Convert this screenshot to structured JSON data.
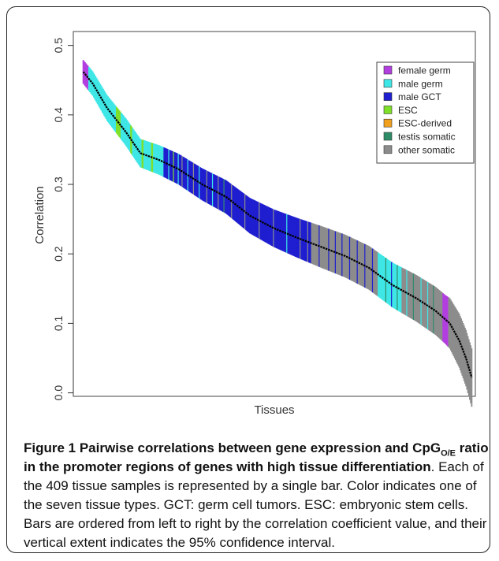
{
  "chart_data": {
    "type": "bar",
    "n_samples": 409,
    "xlabel": "Tissues",
    "ylabel": "Correlation",
    "ylim": [
      -0.005,
      0.52
    ],
    "yticks": [
      0.0,
      0.1,
      0.2,
      0.3,
      0.4,
      0.5
    ],
    "ytick_labels": [
      "0.0",
      "0.1",
      "0.2",
      "0.3",
      "0.4",
      "0.5"
    ],
    "legend_position": "top-right",
    "legend": [
      {
        "label": "female germ",
        "color": "#b23ee0"
      },
      {
        "label": "male germ",
        "color": "#3fe6e6"
      },
      {
        "label": "male GCT",
        "color": "#1f1fd0"
      },
      {
        "label": "ESC",
        "color": "#7fe02a"
      },
      {
        "label": "ESC-derived",
        "color": "#f0a01e"
      },
      {
        "label": "testis somatic",
        "color": "#2f8c68"
      },
      {
        "label": "other somatic",
        "color": "#8c8c8c"
      }
    ],
    "correlation_curve": {
      "index": [
        0,
        10,
        25,
        45,
        60,
        80,
        100,
        125,
        150,
        175,
        200,
        225,
        250,
        275,
        300,
        325,
        350,
        370,
        385,
        395,
        402,
        408
      ],
      "r": [
        0.462,
        0.445,
        0.41,
        0.375,
        0.345,
        0.335,
        0.322,
        0.3,
        0.282,
        0.255,
        0.237,
        0.223,
        0.21,
        0.197,
        0.18,
        0.155,
        0.136,
        0.118,
        0.1,
        0.075,
        0.05,
        0.022
      ]
    },
    "ci_halfwidth_curve": {
      "index": [
        0,
        50,
        150,
        250,
        320,
        380,
        408
      ],
      "h": [
        0.017,
        0.02,
        0.024,
        0.03,
        0.032,
        0.035,
        0.042
      ]
    },
    "color_segments": [
      {
        "start": 0,
        "end": 6,
        "type": "female germ"
      },
      {
        "start": 6,
        "end": 35,
        "type": "male germ"
      },
      {
        "start": 35,
        "end": 40,
        "type": "ESC"
      },
      {
        "start": 40,
        "end": 50,
        "type": "male germ"
      },
      {
        "start": 50,
        "end": 52,
        "type": "ESC"
      },
      {
        "start": 52,
        "end": 62,
        "type": "male germ"
      },
      {
        "start": 62,
        "end": 64,
        "type": "ESC"
      },
      {
        "start": 64,
        "end": 72,
        "type": "male germ"
      },
      {
        "start": 72,
        "end": 74,
        "type": "ESC"
      },
      {
        "start": 74,
        "end": 85,
        "type": "male germ"
      },
      {
        "start": 85,
        "end": 240,
        "type": "male GCT"
      },
      {
        "start": 240,
        "end": 310,
        "type": "other somatic"
      },
      {
        "start": 310,
        "end": 335,
        "type": "male germ"
      },
      {
        "start": 335,
        "end": 378,
        "type": "other somatic"
      },
      {
        "start": 378,
        "end": 384,
        "type": "female germ"
      },
      {
        "start": 384,
        "end": 409,
        "type": "other somatic"
      }
    ],
    "accent_bars": [
      {
        "index": 90,
        "type": "male germ"
      },
      {
        "index": 95,
        "type": "ESC"
      },
      {
        "index": 100,
        "type": "male germ"
      },
      {
        "index": 104,
        "type": "other somatic"
      },
      {
        "index": 110,
        "type": "male germ"
      },
      {
        "index": 116,
        "type": "other somatic"
      },
      {
        "index": 122,
        "type": "male germ"
      },
      {
        "index": 130,
        "type": "other somatic"
      },
      {
        "index": 136,
        "type": "male germ"
      },
      {
        "index": 142,
        "type": "other somatic"
      },
      {
        "index": 148,
        "type": "testis somatic"
      },
      {
        "index": 156,
        "type": "other somatic"
      },
      {
        "index": 170,
        "type": "other somatic"
      },
      {
        "index": 185,
        "type": "other somatic"
      },
      {
        "index": 200,
        "type": "other somatic"
      },
      {
        "index": 214,
        "type": "male germ"
      },
      {
        "index": 228,
        "type": "other somatic"
      },
      {
        "index": 236,
        "type": "other somatic"
      },
      {
        "index": 248,
        "type": "male GCT"
      },
      {
        "index": 258,
        "type": "male GCT"
      },
      {
        "index": 265,
        "type": "male GCT"
      },
      {
        "index": 272,
        "type": "male GCT"
      },
      {
        "index": 280,
        "type": "male GCT"
      },
      {
        "index": 288,
        "type": "male GCT"
      },
      {
        "index": 296,
        "type": "male GCT"
      },
      {
        "index": 304,
        "type": "male GCT"
      },
      {
        "index": 318,
        "type": "testis somatic"
      },
      {
        "index": 324,
        "type": "male GCT"
      },
      {
        "index": 330,
        "type": "testis somatic"
      },
      {
        "index": 340,
        "type": "male germ"
      },
      {
        "index": 347,
        "type": "testis somatic"
      },
      {
        "index": 355,
        "type": "male germ"
      },
      {
        "index": 362,
        "type": "male germ"
      },
      {
        "index": 368,
        "type": "testis somatic"
      }
    ]
  },
  "caption": {
    "title_part1": "Figure 1 Pairwise correlations between gene expression and CpG",
    "title_sub": "O/E",
    "title_part2": " ratio in the promoter regions of genes with high tissue differentiation",
    "body": ". Each of the 409 tissue samples is represented by a single bar. Color indicates one of the seven tissue types. GCT: germ cell tumors. ESC: embryonic stem cells. Bars are ordered from left to right by the correlation coefficient value, and their vertical extent indicates the 95% confidence interval."
  }
}
